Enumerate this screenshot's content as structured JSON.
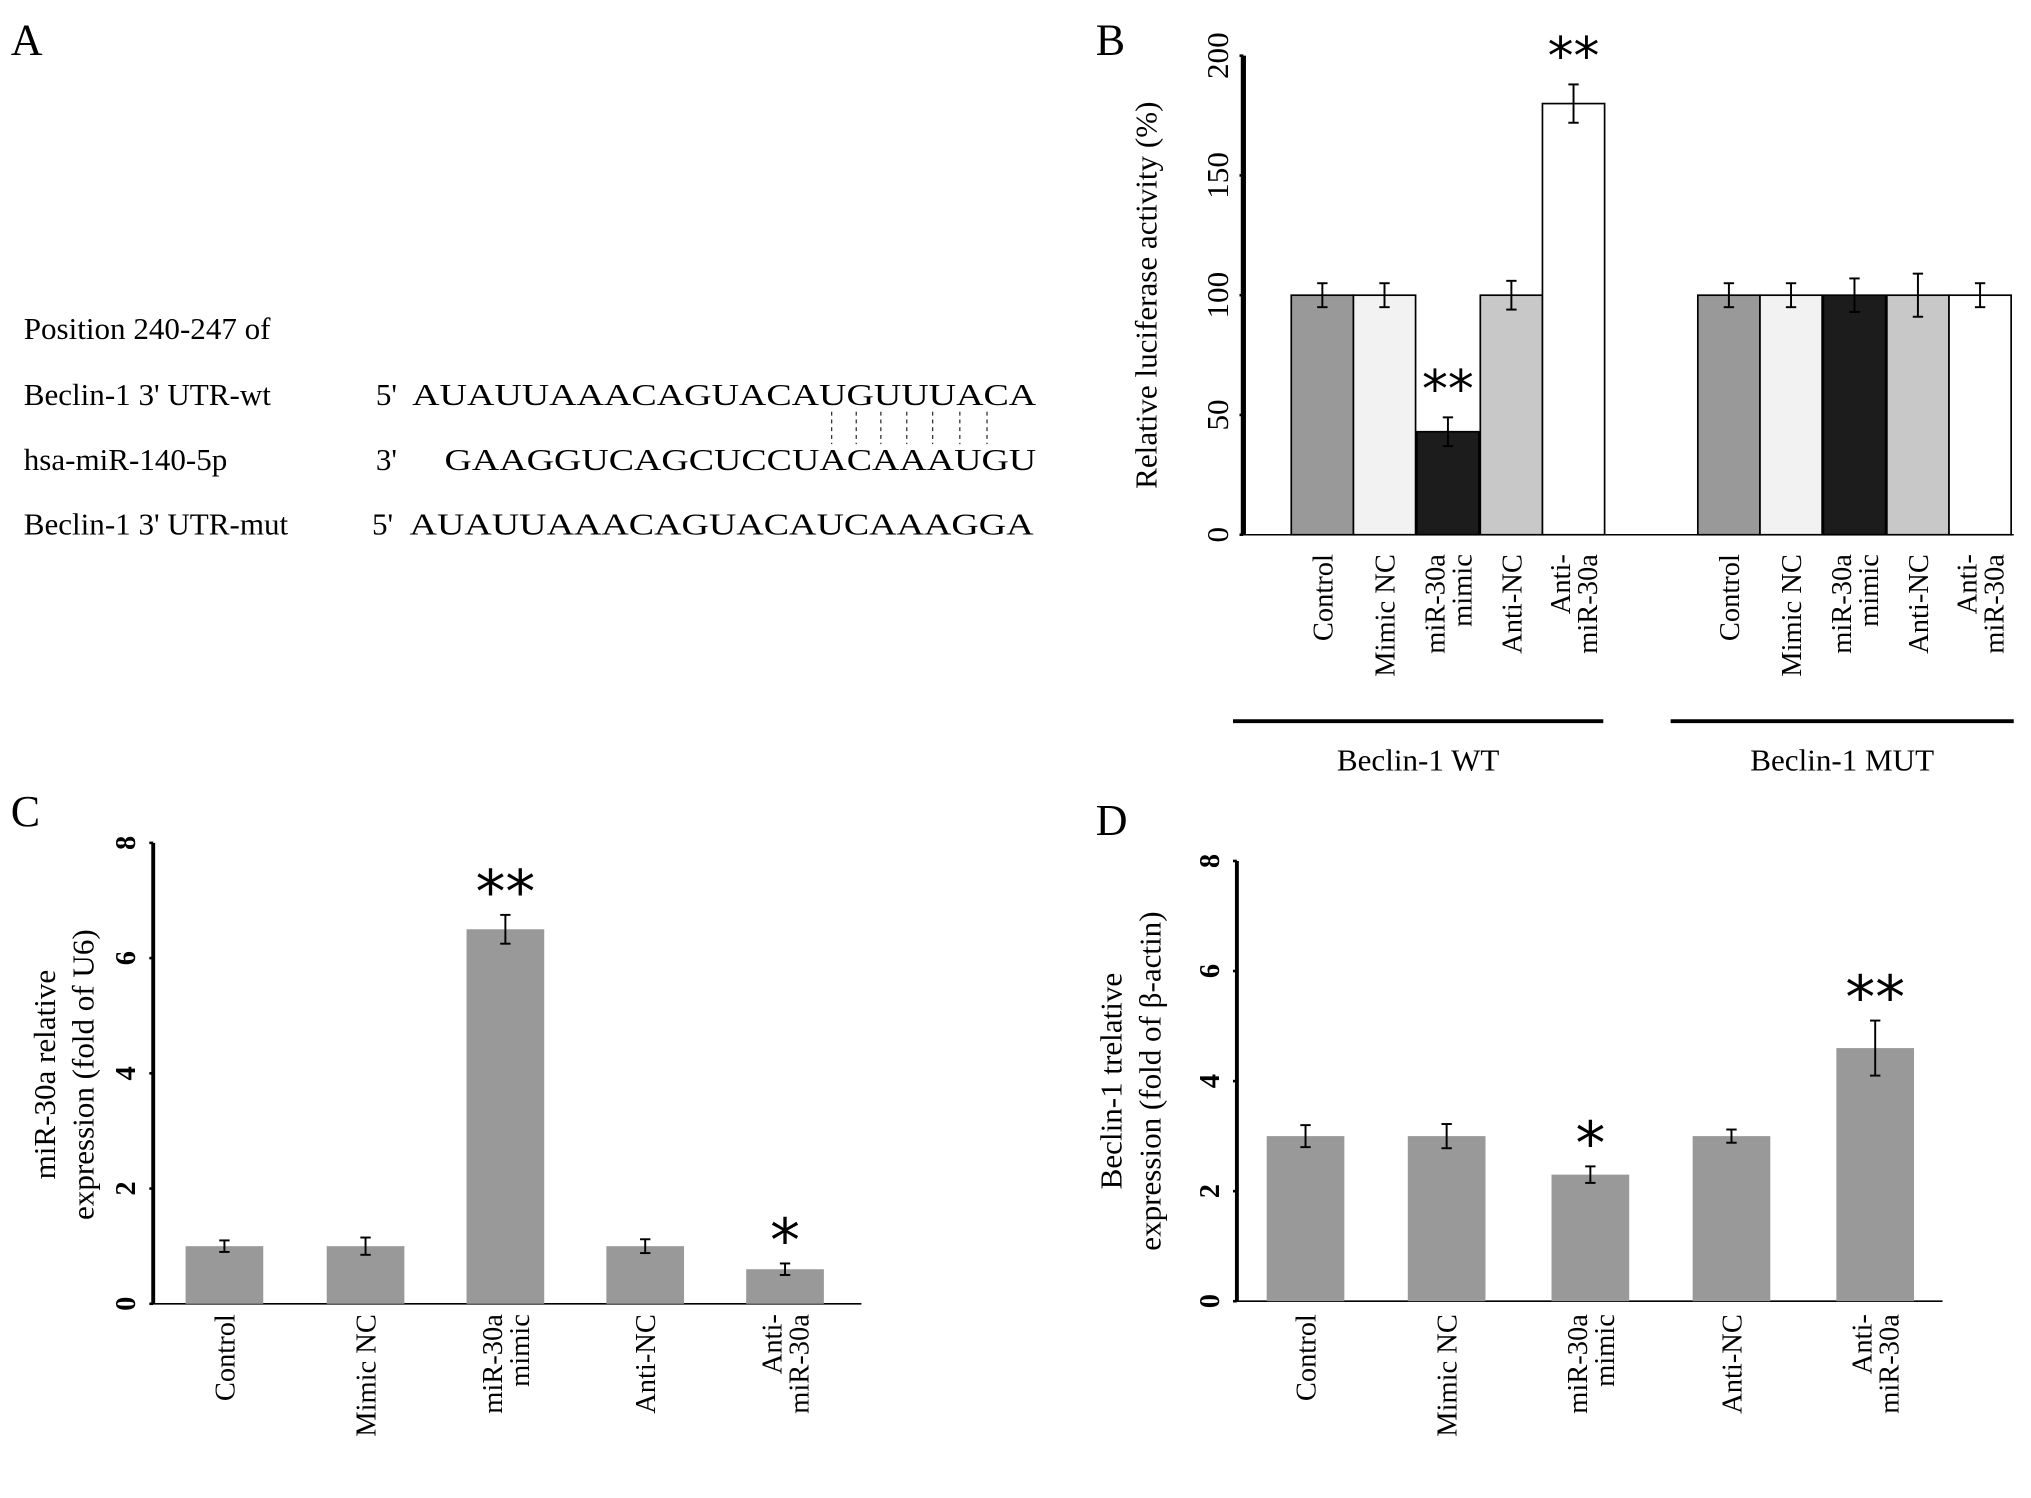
{
  "panel_labels": {
    "a": "A",
    "b": "B",
    "c": "C",
    "d": "D"
  },
  "panel_a": {
    "header": "Position 240-247 of",
    "rows": [
      {
        "name": "Beclin-1 3' UTR-wt",
        "prime": "5'",
        "sequence": "AUAUUAAACAGUACAUGUUUACA"
      },
      {
        "name": "hsa-miR-140-5p",
        "prime": "3'",
        "sequence": "GAAGGUCAGCUCCUACAAAUGU"
      },
      {
        "name": "Beclin-1 3' UTR-mut",
        "prime": "5'",
        "sequence": "AUAUUAAACAGUACAUCAAAGGA"
      }
    ]
  },
  "chart_data": [
    {
      "id": "B",
      "type": "bar",
      "ylabel": "Relative luciferase activity (%)",
      "ylim": [
        0,
        200
      ],
      "yticks": [
        "0",
        "50",
        "100",
        "150",
        "200"
      ],
      "groups": [
        {
          "name": "Beclin-1 WT",
          "categories": [
            "Control",
            "Mimic NC",
            "miR-30a mimic",
            "Anti-NC",
            "Anti-miR-30a"
          ],
          "values": [
            100,
            100,
            43,
            100,
            180
          ],
          "errors": [
            5,
            5,
            6,
            6,
            8
          ],
          "colors": [
            "#999999",
            "#f2f2f2",
            "#1c1c1c",
            "#c8c8c8",
            "#ffffff"
          ],
          "annotations": [
            "",
            "",
            "**",
            "",
            "**"
          ]
        },
        {
          "name": "Beclin-1 MUT",
          "categories": [
            "Control",
            "Mimic NC",
            "miR-30a mimic",
            "Anti-NC",
            "Anti-miR-30a"
          ],
          "values": [
            100,
            100,
            100,
            100,
            100
          ],
          "errors": [
            5,
            5,
            7,
            9,
            5
          ],
          "colors": [
            "#999999",
            "#f2f2f2",
            "#1c1c1c",
            "#c8c8c8",
            "#ffffff"
          ],
          "annotations": [
            "",
            "",
            "",
            "",
            ""
          ]
        }
      ]
    },
    {
      "id": "C",
      "type": "bar",
      "ylabel_lines": [
        "miR-30a relative",
        "expression (fold of U6)"
      ],
      "ylim": [
        0,
        8
      ],
      "yticks": [
        "0",
        "2",
        "4",
        "6",
        "8"
      ],
      "categories": [
        "Control",
        "Mimic NC",
        "miR-30a mimic",
        "Anti-NC",
        "Anti-miR-30a"
      ],
      "values": [
        1.0,
        1.0,
        6.5,
        1.0,
        0.6
      ],
      "errors": [
        0.1,
        0.15,
        0.25,
        0.12,
        0.1
      ],
      "color": "#999999",
      "annotations": [
        "",
        "",
        "**",
        "",
        "*"
      ]
    },
    {
      "id": "D",
      "type": "bar",
      "ylabel_lines": [
        "Beclin-1 trelative",
        "expression (fold of β-actin)"
      ],
      "ylim": [
        0,
        8
      ],
      "yticks": [
        "0",
        "2",
        "4",
        "6",
        "8"
      ],
      "categories": [
        "Control",
        "Mimic NC",
        "miR-30a mimic",
        "Anti-NC",
        "Anti-miR-30a"
      ],
      "values": [
        3.0,
        3.0,
        2.3,
        3.0,
        4.6
      ],
      "errors": [
        0.2,
        0.22,
        0.15,
        0.12,
        0.5
      ],
      "color": "#999999",
      "annotations": [
        "",
        "*",
        "",
        "",
        "**"
      ]
    }
  ]
}
